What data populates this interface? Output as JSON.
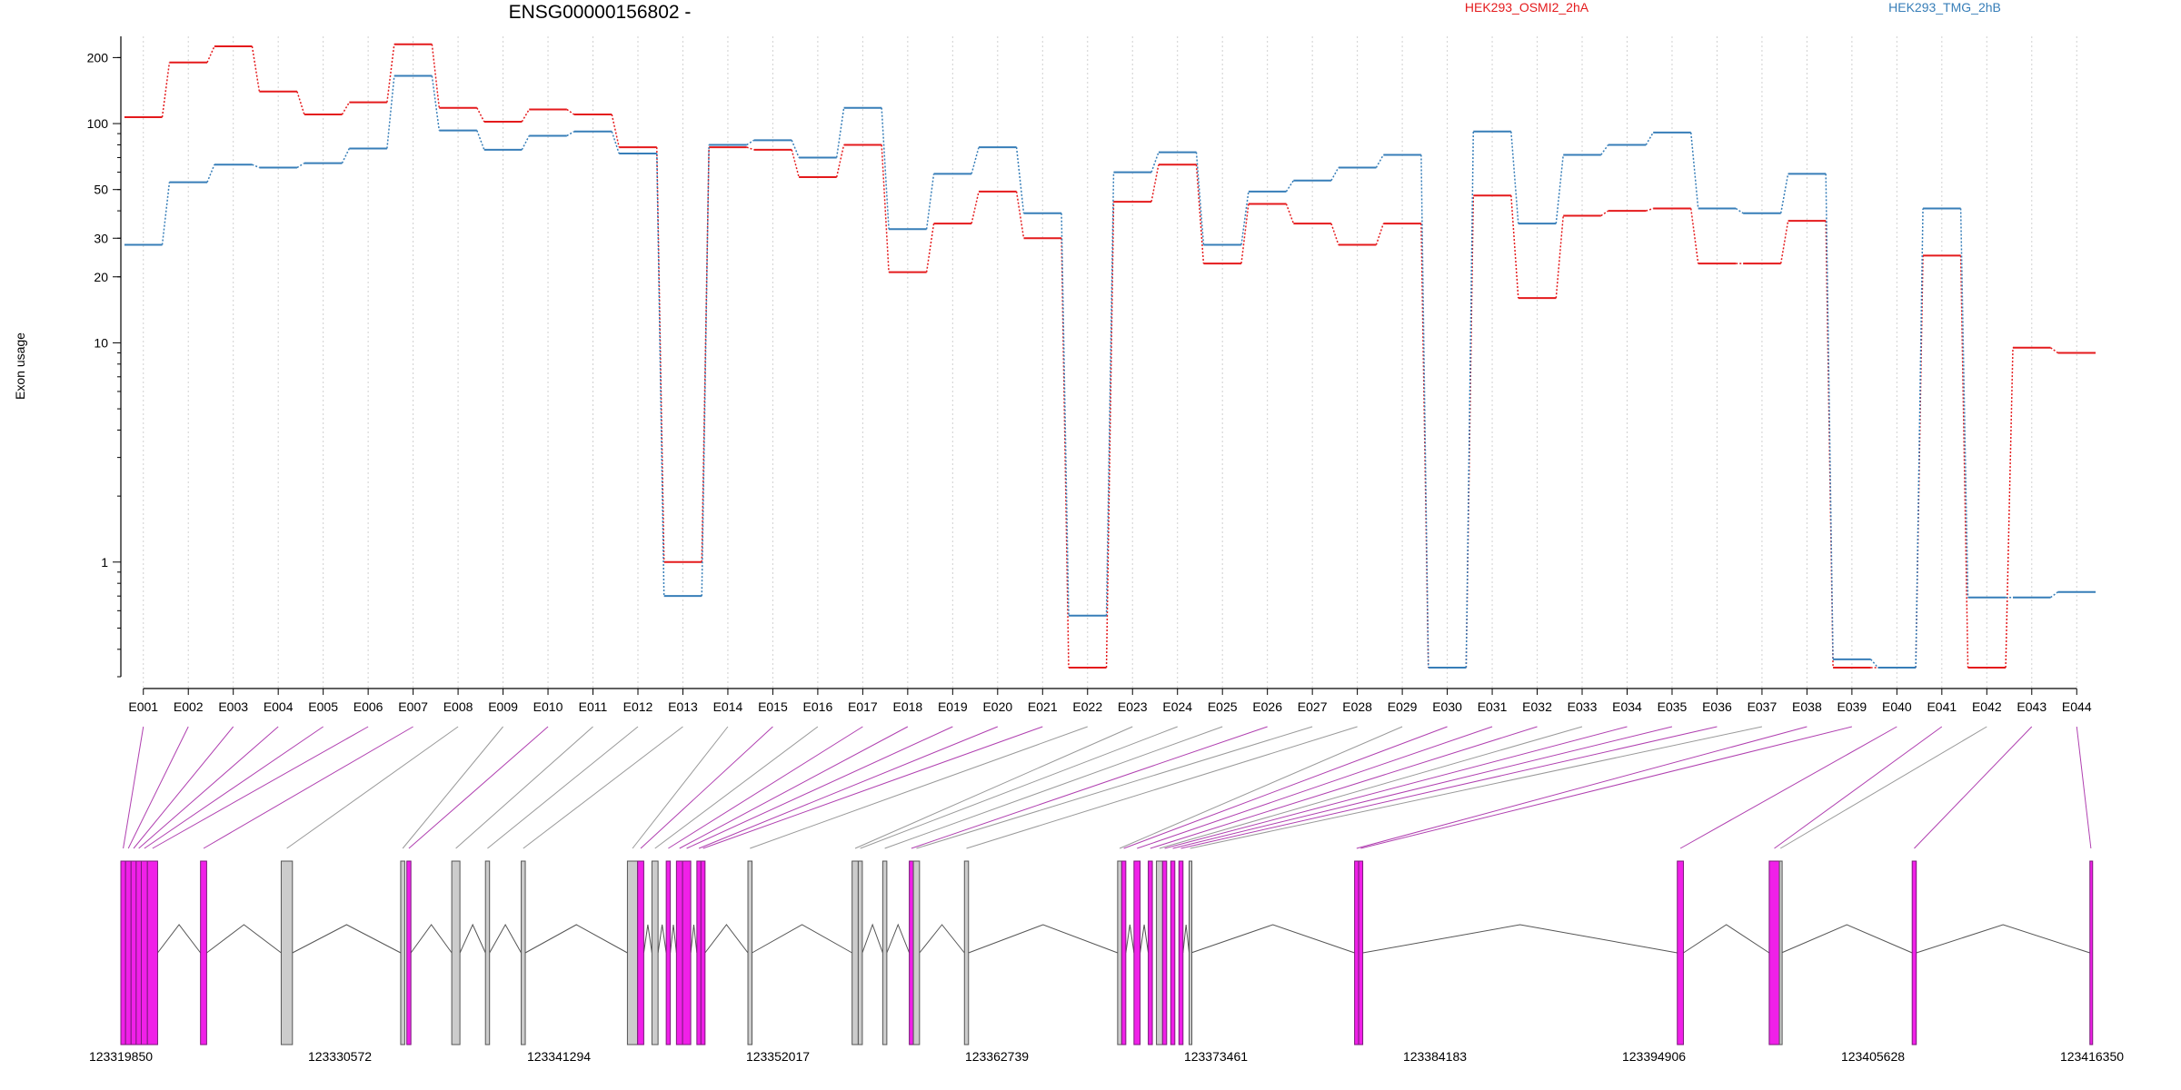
{
  "chart_data": {
    "type": "line",
    "title": "ENSG00000156802 -",
    "ylabel": "Exon usage",
    "xlabel": "",
    "y_scale": "log",
    "yticks": [
      "1",
      "10",
      "20",
      "30",
      "50",
      "100",
      "200"
    ],
    "ylim": [
      0.3,
      250
    ],
    "categories": [
      "E001",
      "E002",
      "E003",
      "E004",
      "E005",
      "E006",
      "E007",
      "E008",
      "E009",
      "E010",
      "E011",
      "E012",
      "E013",
      "E014",
      "E015",
      "E016",
      "E017",
      "E018",
      "E019",
      "E020",
      "E021",
      "E022",
      "E023",
      "E024",
      "E025",
      "E026",
      "E027",
      "E028",
      "E029",
      "E030",
      "E031",
      "E032",
      "E033",
      "E034",
      "E035",
      "E036",
      "E037",
      "E038",
      "E039",
      "E040",
      "E041",
      "E042",
      "E043",
      "E044"
    ],
    "series": [
      {
        "name": "HEK293_OSMI2_2hA",
        "color": "#e41a1c",
        "values": [
          107,
          190,
          225,
          140,
          110,
          125,
          230,
          118,
          102,
          116,
          110,
          78,
          1.0,
          78,
          76,
          57,
          80,
          21,
          35,
          49,
          30,
          0.33,
          44,
          65,
          23,
          43,
          35,
          28,
          35,
          0.33,
          47,
          16,
          38,
          40,
          41,
          23,
          23,
          36,
          0.33,
          0.33,
          25,
          0.33,
          9.5,
          9.0
        ]
      },
      {
        "name": "HEK293_TMG_2hB",
        "color": "#377eb8",
        "values": [
          28,
          54,
          65,
          63,
          66,
          77,
          165,
          93,
          76,
          88,
          92,
          73,
          0.7,
          80,
          84,
          70,
          118,
          33,
          59,
          78,
          39,
          0.57,
          60,
          74,
          28,
          49,
          55,
          63,
          72,
          0.33,
          92,
          35,
          72,
          80,
          91,
          41,
          39,
          59,
          0.36,
          0.33,
          41,
          0.69,
          0.69,
          0.73
        ]
      }
    ],
    "legend": "top",
    "grid": "vertical dotted",
    "genomic_ticks": [
      "123319850",
      "123330572",
      "123341294",
      "123352017",
      "123362739",
      "123373461",
      "123384183",
      "123394906",
      "123405628",
      "123416350"
    ],
    "exon_types": [
      "pink",
      "pink",
      "pink",
      "pink",
      "pink",
      "pink",
      "pink",
      "gray",
      "gray",
      "pink",
      "gray",
      "gray",
      "gray",
      "gray",
      "pink",
      "gray",
      "pink",
      "pink",
      "pink",
      "pink",
      "pink",
      "gray",
      "gray",
      "gray",
      "gray",
      "pink",
      "gray",
      "gray",
      "gray",
      "pink",
      "pink",
      "pink",
      "gray",
      "pink",
      "pink",
      "pink",
      "gray",
      "pink",
      "pink",
      "pink",
      "pink",
      "gray",
      "pink",
      "pink"
    ],
    "exon_intervals": [
      [
        123319850,
        123320080
      ],
      [
        123320080,
        123320350
      ],
      [
        123320350,
        123320600
      ],
      [
        123320600,
        123320850
      ],
      [
        123320850,
        123321150
      ],
      [
        123321150,
        123321650
      ],
      [
        123323750,
        123324050
      ],
      [
        123327700,
        123328250
      ],
      [
        123333550,
        123333750
      ],
      [
        123333850,
        123334050
      ],
      [
        123336050,
        123336450
      ],
      [
        123337700,
        123337900
      ],
      [
        123339450,
        123339650
      ],
      [
        123344650,
        123345150
      ],
      [
        123345150,
        123345450
      ],
      [
        123345850,
        123346150
      ],
      [
        123346550,
        123346750
      ],
      [
        123347050,
        123347350
      ],
      [
        123347350,
        123347750
      ],
      [
        123348050,
        123348250
      ],
      [
        123348250,
        123348450
      ],
      [
        123350550,
        123350750
      ],
      [
        123355650,
        123355950
      ],
      [
        123355950,
        123356150
      ],
      [
        123357150,
        123357350
      ],
      [
        123358450,
        123358650
      ],
      [
        123358650,
        123358950
      ],
      [
        123361150,
        123361350
      ],
      [
        123368650,
        123368850
      ],
      [
        123368850,
        123369050
      ],
      [
        123369450,
        123369750
      ],
      [
        123370150,
        123370350
      ],
      [
        123370550,
        123370850
      ],
      [
        123370850,
        123371050
      ],
      [
        123371250,
        123371450
      ],
      [
        123371650,
        123371850
      ],
      [
        123372150,
        123372250
      ],
      [
        123380250,
        123380450
      ],
      [
        123380450,
        123380650
      ],
      [
        123396050,
        123396350
      ],
      [
        123400550,
        123401050
      ],
      [
        123401050,
        123401150
      ],
      [
        123407550,
        123407750
      ],
      [
        123416250,
        123416350
      ]
    ]
  }
}
